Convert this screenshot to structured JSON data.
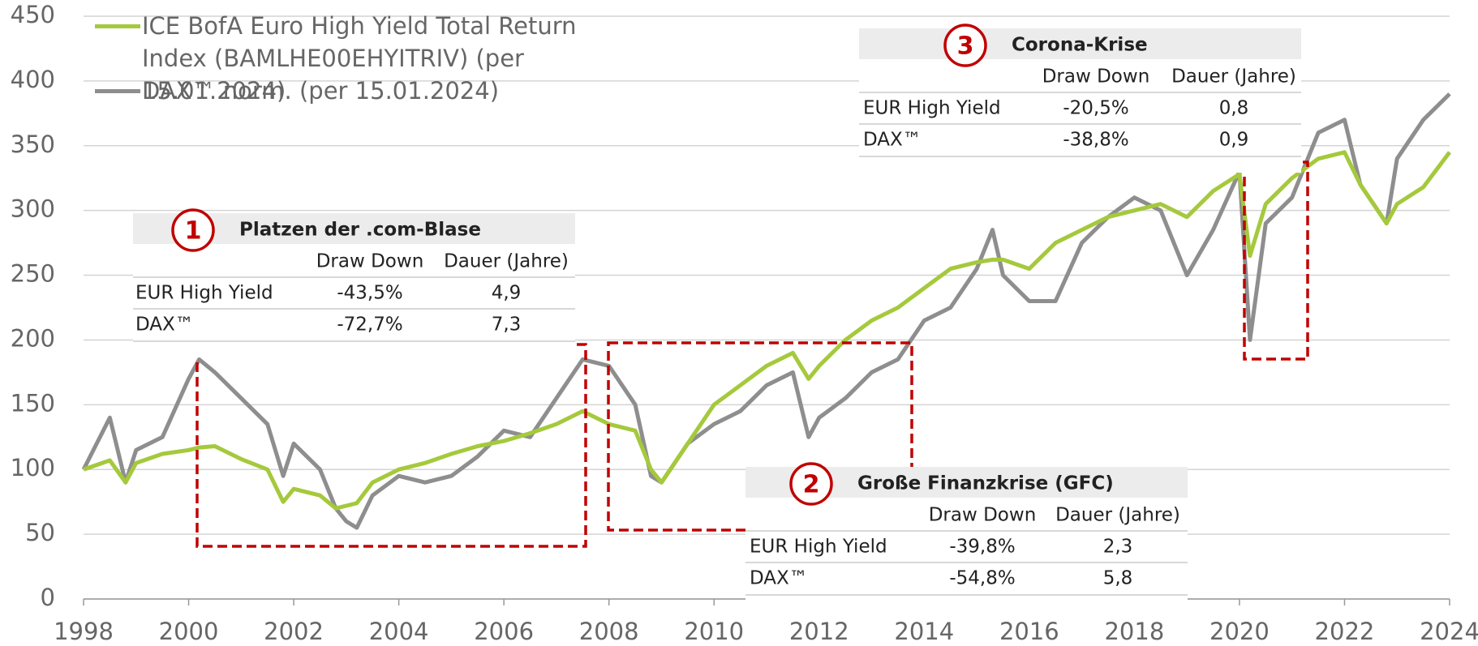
{
  "chart_data": {
    "type": "line",
    "x": [
      1998,
      1998.5,
      1998.8,
      1999,
      1999.5,
      2000,
      2000.2,
      2000.5,
      2001,
      2001.5,
      2001.8,
      2002,
      2002.5,
      2002.8,
      2003,
      2003.2,
      2003.5,
      2004,
      2004.5,
      2005,
      2005.5,
      2006,
      2006.5,
      2007,
      2007.5,
      2008,
      2008.5,
      2008.8,
      2009,
      2009.5,
      2010,
      2010.5,
      2011,
      2011.5,
      2011.8,
      2012,
      2012.5,
      2013,
      2013.5,
      2014,
      2014.5,
      2015,
      2015.3,
      2015.5,
      2016,
      2016.5,
      2017,
      2017.5,
      2018,
      2018.5,
      2019,
      2019.5,
      2020,
      2020.2,
      2020.5,
      2021,
      2021.5,
      2022,
      2022.3,
      2022.8,
      2023,
      2023.5,
      2024
    ],
    "series": [
      {
        "name": "ICE BofA Euro High Yield Total Return Index (BAMLHE00EHYITRIV) (per 15.01.2024)",
        "color": "#a5c93c",
        "values": [
          100,
          107,
          90,
          105,
          112,
          115,
          117,
          118,
          108,
          100,
          75,
          85,
          80,
          70,
          72,
          74,
          90,
          100,
          105,
          112,
          118,
          122,
          128,
          135,
          145,
          135,
          130,
          100,
          90,
          120,
          150,
          165,
          180,
          190,
          170,
          180,
          200,
          215,
          225,
          240,
          255,
          260,
          262,
          262,
          255,
          275,
          285,
          295,
          300,
          305,
          295,
          315,
          328,
          265,
          305,
          325,
          340,
          345,
          320,
          290,
          305,
          318,
          345
        ]
      },
      {
        "name": "DAX™ norm. (per 15.01.2024)",
        "color": "#8e8e8e",
        "values": [
          100,
          140,
          90,
          115,
          125,
          170,
          185,
          175,
          155,
          135,
          95,
          120,
          100,
          70,
          60,
          55,
          80,
          95,
          90,
          95,
          110,
          130,
          125,
          155,
          185,
          180,
          150,
          95,
          90,
          120,
          135,
          145,
          165,
          175,
          125,
          140,
          155,
          175,
          185,
          215,
          225,
          255,
          285,
          250,
          230,
          230,
          275,
          295,
          310,
          300,
          250,
          285,
          330,
          200,
          290,
          310,
          360,
          370,
          320,
          290,
          340,
          370,
          390
        ]
      }
    ],
    "xlim": [
      1998,
      2024
    ],
    "xticks": [
      1998,
      2000,
      2002,
      2004,
      2006,
      2008,
      2010,
      2012,
      2014,
      2016,
      2018,
      2020,
      2022,
      2024
    ],
    "ylim": [
      0,
      450
    ],
    "yticks": [
      0,
      50,
      100,
      150,
      200,
      250,
      300,
      350,
      400,
      450
    ],
    "grid": true,
    "annotations": [
      {
        "number": "1",
        "title": "Platzen der .com-Blase",
        "columns": [
          "Draw Down",
          "Dauer (Jahre)"
        ],
        "rows": [
          [
            "EUR High Yield",
            "-43,5%",
            "4,9"
          ],
          [
            "DAX™",
            "-72,7%",
            "7,3"
          ]
        ]
      },
      {
        "number": "2",
        "title": "Große Finanzkrise (GFC)",
        "columns": [
          "Draw Down",
          "Dauer (Jahre)"
        ],
        "rows": [
          [
            "EUR High Yield",
            "-39,8%",
            "2,3"
          ],
          [
            "DAX™",
            "-54,8%",
            "5,8"
          ]
        ]
      },
      {
        "number": "3",
        "title": "Corona-Krise",
        "columns": [
          "Draw Down",
          "Dauer (Jahre)"
        ],
        "rows": [
          [
            "EUR High Yield",
            "-20,5%",
            "0,8"
          ],
          [
            "DAX™",
            "-38,8%",
            "0,9"
          ]
        ]
      }
    ]
  }
}
